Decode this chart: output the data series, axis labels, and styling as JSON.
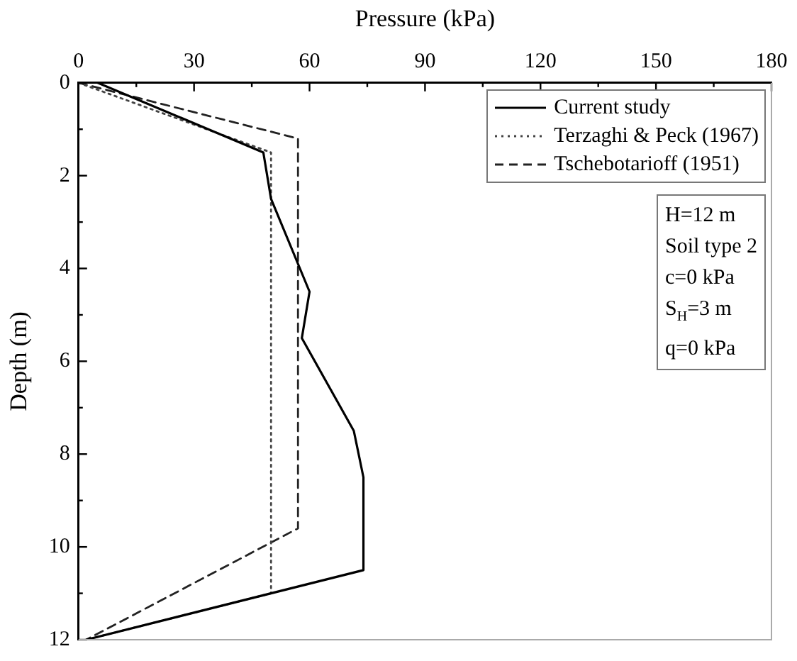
{
  "chart_data": {
    "type": "line",
    "xlabel": "Pressure (kPa)",
    "ylabel": "Depth (m)",
    "xlim": [
      0,
      180
    ],
    "xticks": [
      0,
      {
        "value": 15,
        "label": null
      },
      30,
      {
        "value": 45,
        "label": null
      },
      60,
      {
        "value": 75,
        "label": null
      },
      90,
      {
        "value": 105,
        "label": null
      },
      120,
      {
        "value": 135,
        "label": null
      },
      150,
      {
        "value": 165,
        "label": null
      },
      180
    ],
    "ylim": [
      12,
      0
    ],
    "yticks": [
      0,
      {
        "value": 1,
        "label": null
      },
      2,
      {
        "value": 3,
        "label": null
      },
      4,
      {
        "value": 5,
        "label": null
      },
      6,
      {
        "value": 7,
        "label": null
      },
      8,
      {
        "value": 9,
        "label": null
      },
      10,
      {
        "value": 11,
        "label": null
      },
      12
    ],
    "grid": false,
    "legend": "top right",
    "marker": "none",
    "series": [
      {
        "name": "Current study",
        "color": "#000000",
        "line_style": "solid",
        "x": [
          5,
          48,
          50,
          60,
          58,
          71.5,
          74,
          74,
          2
        ],
        "values": [
          0,
          1.5,
          2.5,
          4.5,
          5.5,
          7.5,
          8.5,
          10.5,
          12
        ]
      },
      {
        "name": "Terzaghi & Peck (1967)",
        "color": "#444444",
        "line_style": "dotted",
        "x": [
          0,
          50,
          50,
          2
        ],
        "values": [
          0,
          1.5,
          11,
          12
        ]
      },
      {
        "name": "Tschebotarioff (1951)",
        "color": "#222222",
        "line_style": "dashed",
        "x": [
          0,
          57,
          57,
          2
        ],
        "values": [
          0,
          1.2,
          9.6,
          12
        ]
      }
    ],
    "annotations": [
      "H=12 m",
      "Soil type 2",
      "c=0 kPa",
      "S$_{H}$=3 m",
      "q=0 kPa"
    ]
  }
}
